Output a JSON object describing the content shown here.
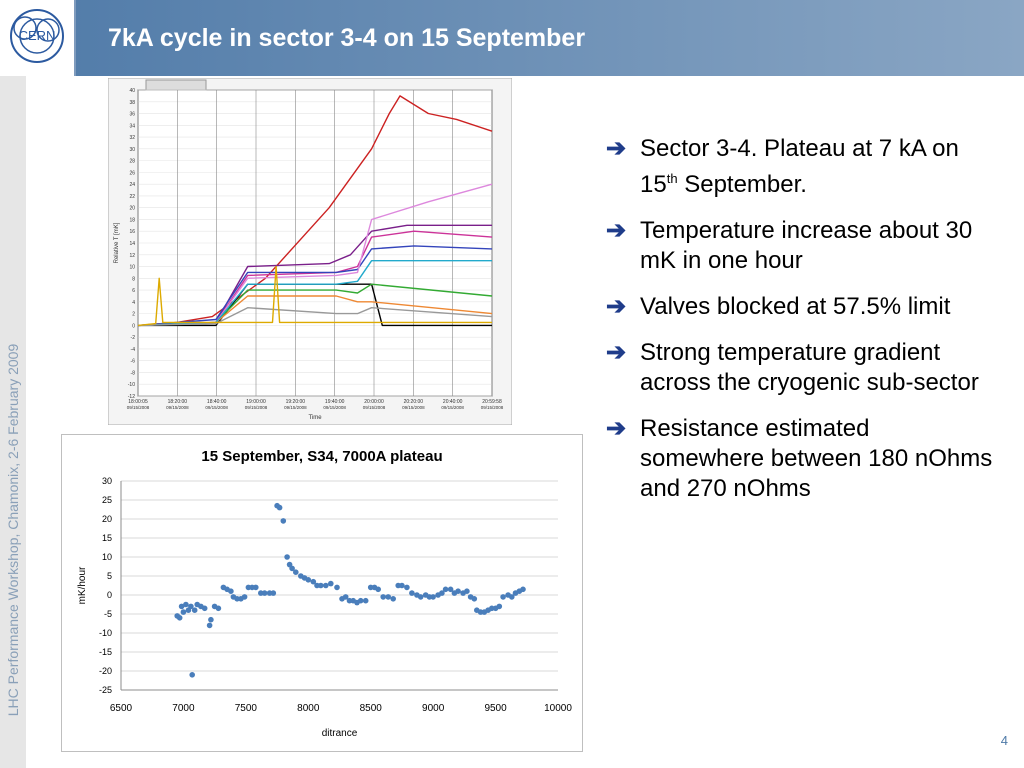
{
  "header": {
    "title": "7kA cycle in sector 3-4 on 15 September",
    "logo_text": "CERN",
    "colors": {
      "bar_start": "#4f7aa8",
      "bar_end": "#8aa6c4",
      "title_text": "#ffffff"
    }
  },
  "sidebar": {
    "vertical_text": "LHC Performance Workshop, Chamonix, 2-6 February 2009"
  },
  "bullets": {
    "arrow_glyph": "➔",
    "items": [
      {
        "text": "Sector 3-4. Plateau at 7 kA on 15",
        "sup": "th",
        "text_after": " September."
      },
      {
        "text": "Temperature increase about 30 mK in one hour"
      },
      {
        "text": "Valves blocked at 57.5% limit"
      },
      {
        "text": "Strong temperature gradient across the cryogenic sub-sector"
      },
      {
        "text": "Resistance estimated somewhere between 180 nOhms and 270 nOhms"
      }
    ]
  },
  "page": {
    "number": "4"
  },
  "chart_data": [
    {
      "type": "line",
      "title": "",
      "xlabel": "Time",
      "ylabel": "Relative T [mK]",
      "ylim": [
        -12,
        40
      ],
      "y_ticks": [
        40,
        38,
        36,
        34,
        32,
        30,
        28,
        26,
        24,
        22,
        20,
        18,
        16,
        14,
        12,
        10,
        8,
        6,
        4,
        2,
        0,
        -2,
        -4,
        -6,
        -8,
        -10,
        -12
      ],
      "x_tick_times": [
        "18:00:05",
        "18:20:00",
        "18:40:00",
        "19:00:00",
        "19:20:00",
        "19:40:00",
        "20:00:00",
        "20:20:00",
        "20:40:00",
        "20:59:58"
      ],
      "x_tick_dates": [
        "09/15/2008",
        "09/15/2008",
        "09/15/2008",
        "09/15/2008",
        "09/15/2008",
        "09/15/2008",
        "09/15/2008",
        "09/15/2008",
        "09/15/2008",
        "09/15/2008"
      ],
      "grid": true,
      "series": [
        {
          "color": "#cc2222",
          "x": [
            0,
            0.11,
            0.21,
            0.36,
            0.54,
            0.66,
            0.71,
            0.74,
            0.82,
            0.9,
            1.0
          ],
          "y": [
            0,
            0.5,
            1.5,
            8,
            20,
            30,
            36,
            39,
            36,
            35,
            33
          ]
        },
        {
          "color": "#000000",
          "x": [
            0,
            0.22,
            0.31,
            0.46,
            0.66,
            0.69,
            1.0
          ],
          "y": [
            0,
            0,
            7,
            7,
            7,
            0,
            0
          ]
        },
        {
          "color": "#7a1f8a",
          "x": [
            0,
            0.22,
            0.31,
            0.54,
            0.6,
            0.66,
            0.76,
            1.0
          ],
          "y": [
            0,
            0.5,
            10,
            10.5,
            12,
            16,
            17,
            17
          ]
        },
        {
          "color": "#cc3399",
          "x": [
            0,
            0.22,
            0.31,
            0.56,
            0.62,
            0.66,
            0.78,
            1.0
          ],
          "y": [
            0,
            0.5,
            8.5,
            9,
            10,
            15,
            16,
            15
          ]
        },
        {
          "color": "#3344bb",
          "x": [
            0,
            0.22,
            0.31,
            0.56,
            0.62,
            0.66,
            0.78,
            1.0
          ],
          "y": [
            0,
            1,
            9,
            9,
            9.5,
            13,
            13.5,
            13
          ]
        },
        {
          "color": "#dd88dd",
          "x": [
            0,
            0.22,
            0.31,
            0.56,
            0.62,
            0.66,
            0.82,
            1.0
          ],
          "y": [
            0,
            0.5,
            8,
            8.5,
            9,
            18,
            21,
            24
          ]
        },
        {
          "color": "#33aa33",
          "x": [
            0,
            0.22,
            0.31,
            0.56,
            0.62,
            0.66,
            1.0
          ],
          "y": [
            0,
            0.5,
            6,
            6,
            5.5,
            7,
            5
          ]
        },
        {
          "color": "#ee8833",
          "x": [
            0,
            0.22,
            0.31,
            0.56,
            0.62,
            0.66,
            1.0
          ],
          "y": [
            0,
            0.5,
            5,
            5,
            4,
            4,
            2
          ]
        },
        {
          "color": "#22aacc",
          "x": [
            0,
            0.22,
            0.31,
            0.56,
            0.62,
            0.66,
            1.0
          ],
          "y": [
            0,
            0.5,
            7,
            7,
            7.5,
            11,
            11
          ]
        },
        {
          "color": "#999999",
          "x": [
            0,
            0.22,
            0.31,
            0.56,
            0.62,
            0.66,
            1.0
          ],
          "y": [
            0,
            0.3,
            3,
            2,
            2,
            3,
            1.5
          ]
        },
        {
          "color": "#ddaa00",
          "x": [
            0,
            0.05,
            0.06,
            0.07,
            0.3,
            0.38,
            0.39,
            0.4,
            1.0
          ],
          "y": [
            0,
            0.3,
            8,
            0.5,
            0.5,
            0.5,
            10,
            0.5,
            0.5
          ]
        }
      ]
    },
    {
      "type": "scatter",
      "title": "15 September, S34, 7000A plateau",
      "xlabel": "ditrance",
      "ylabel": "mK/hour",
      "xlim": [
        6500,
        10000
      ],
      "ylim": [
        -25,
        30
      ],
      "x_ticks": [
        6500,
        7000,
        7500,
        8000,
        8500,
        9000,
        9500,
        10000
      ],
      "y_ticks": [
        30,
        25,
        20,
        15,
        10,
        5,
        0,
        -5,
        -10,
        -15,
        -20,
        -25
      ],
      "grid": true,
      "marker_color": "#4a7ebb",
      "points": [
        {
          "x": 6950,
          "y": -5.5
        },
        {
          "x": 6970,
          "y": -6
        },
        {
          "x": 6985,
          "y": -3
        },
        {
          "x": 7000,
          "y": -4.5
        },
        {
          "x": 7020,
          "y": -2.5
        },
        {
          "x": 7040,
          "y": -4
        },
        {
          "x": 7060,
          "y": -3
        },
        {
          "x": 7070,
          "y": -21
        },
        {
          "x": 7090,
          "y": -4
        },
        {
          "x": 7110,
          "y": -2.5
        },
        {
          "x": 7140,
          "y": -3
        },
        {
          "x": 7170,
          "y": -3.5
        },
        {
          "x": 7210,
          "y": -8
        },
        {
          "x": 7220,
          "y": -6.5
        },
        {
          "x": 7250,
          "y": -3
        },
        {
          "x": 7280,
          "y": -3.5
        },
        {
          "x": 7320,
          "y": 2
        },
        {
          "x": 7350,
          "y": 1.5
        },
        {
          "x": 7380,
          "y": 1
        },
        {
          "x": 7400,
          "y": -0.5
        },
        {
          "x": 7430,
          "y": -1
        },
        {
          "x": 7460,
          "y": -1
        },
        {
          "x": 7490,
          "y": -0.5
        },
        {
          "x": 7520,
          "y": 2
        },
        {
          "x": 7550,
          "y": 2
        },
        {
          "x": 7580,
          "y": 2
        },
        {
          "x": 7620,
          "y": 0.5
        },
        {
          "x": 7650,
          "y": 0.5
        },
        {
          "x": 7690,
          "y": 0.5
        },
        {
          "x": 7720,
          "y": 0.5
        },
        {
          "x": 7750,
          "y": 23.5
        },
        {
          "x": 7770,
          "y": 23
        },
        {
          "x": 7800,
          "y": 19.5
        },
        {
          "x": 7830,
          "y": 10
        },
        {
          "x": 7850,
          "y": 8
        },
        {
          "x": 7870,
          "y": 7
        },
        {
          "x": 7900,
          "y": 6
        },
        {
          "x": 7940,
          "y": 5
        },
        {
          "x": 7970,
          "y": 4.5
        },
        {
          "x": 8000,
          "y": 4
        },
        {
          "x": 8040,
          "y": 3.5
        },
        {
          "x": 8070,
          "y": 2.5
        },
        {
          "x": 8100,
          "y": 2.5
        },
        {
          "x": 8140,
          "y": 2.5
        },
        {
          "x": 8180,
          "y": 3
        },
        {
          "x": 8230,
          "y": 2
        },
        {
          "x": 8270,
          "y": -1
        },
        {
          "x": 8300,
          "y": -0.5
        },
        {
          "x": 8330,
          "y": -1.5
        },
        {
          "x": 8360,
          "y": -1.5
        },
        {
          "x": 8390,
          "y": -2
        },
        {
          "x": 8420,
          "y": -1.5
        },
        {
          "x": 8460,
          "y": -1.5
        },
        {
          "x": 8500,
          "y": 2
        },
        {
          "x": 8530,
          "y": 2
        },
        {
          "x": 8560,
          "y": 1.5
        },
        {
          "x": 8600,
          "y": -0.5
        },
        {
          "x": 8640,
          "y": -0.5
        },
        {
          "x": 8680,
          "y": -1
        },
        {
          "x": 8720,
          "y": 2.5
        },
        {
          "x": 8750,
          "y": 2.5
        },
        {
          "x": 8790,
          "y": 2
        },
        {
          "x": 8830,
          "y": 0.5
        },
        {
          "x": 8870,
          "y": 0
        },
        {
          "x": 8900,
          "y": -0.5
        },
        {
          "x": 8940,
          "y": 0
        },
        {
          "x": 8970,
          "y": -0.5
        },
        {
          "x": 9000,
          "y": -0.5
        },
        {
          "x": 9040,
          "y": 0
        },
        {
          "x": 9070,
          "y": 0.5
        },
        {
          "x": 9100,
          "y": 1.5
        },
        {
          "x": 9140,
          "y": 1.5
        },
        {
          "x": 9170,
          "y": 0.5
        },
        {
          "x": 9200,
          "y": 1
        },
        {
          "x": 9240,
          "y": 0.5
        },
        {
          "x": 9270,
          "y": 1
        },
        {
          "x": 9300,
          "y": -0.5
        },
        {
          "x": 9330,
          "y": -1
        },
        {
          "x": 9350,
          "y": -4
        },
        {
          "x": 9380,
          "y": -4.5
        },
        {
          "x": 9410,
          "y": -4.5
        },
        {
          "x": 9440,
          "y": -4
        },
        {
          "x": 9470,
          "y": -3.5
        },
        {
          "x": 9500,
          "y": -3.5
        },
        {
          "x": 9530,
          "y": -3
        },
        {
          "x": 9560,
          "y": -0.5
        },
        {
          "x": 9600,
          "y": 0
        },
        {
          "x": 9630,
          "y": -0.5
        },
        {
          "x": 9660,
          "y": 0.5
        },
        {
          "x": 9690,
          "y": 1
        },
        {
          "x": 9720,
          "y": 1.5
        }
      ]
    }
  ]
}
